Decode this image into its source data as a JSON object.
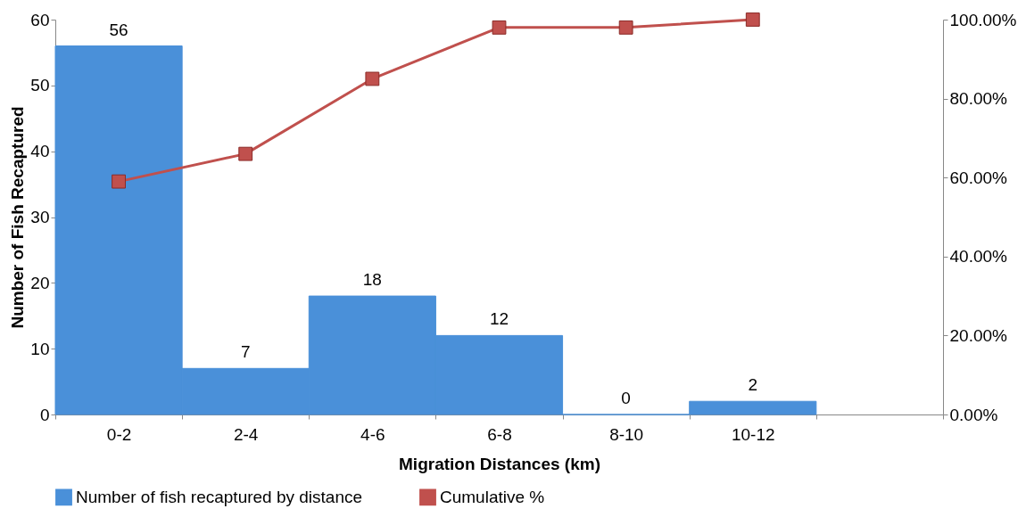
{
  "chart_data": {
    "type": "bar",
    "xlabel": "Migration Distances (km)",
    "ylabel": "Number of Fish Recaptured",
    "categories": [
      "0-2",
      "2-4",
      "4-6",
      "6-8",
      "8-10",
      "10-12",
      null
    ],
    "series": [
      {
        "name": "Number of fish recaptured by distance",
        "color": "#4a90d9",
        "values": [
          56,
          7,
          18,
          12,
          0,
          2,
          null
        ],
        "value_labels": [
          "56",
          "7",
          "18",
          "12",
          "0",
          "2",
          null
        ]
      },
      {
        "name": "Cumulative %",
        "color": "#c0504d",
        "type": "line",
        "axis": "y2",
        "values": [
          59,
          66,
          85,
          98,
          98,
          100,
          null
        ]
      }
    ],
    "ylim": [
      0,
      60
    ],
    "yticks": [
      0,
      10,
      20,
      30,
      40,
      50,
      60
    ],
    "y2lim": [
      0,
      100
    ],
    "y2ticks": [
      {
        "value": 0,
        "label": "0.00%"
      },
      {
        "value": 20,
        "label": "20.00%"
      },
      {
        "value": 40,
        "label": "40.00%"
      },
      {
        "value": 60,
        "label": "60.00%"
      },
      {
        "value": 80,
        "label": "80.00%"
      },
      {
        "value": 100,
        "label": "100.00%"
      }
    ],
    "marker": "square",
    "legend": "bottom",
    "grid": false
  }
}
